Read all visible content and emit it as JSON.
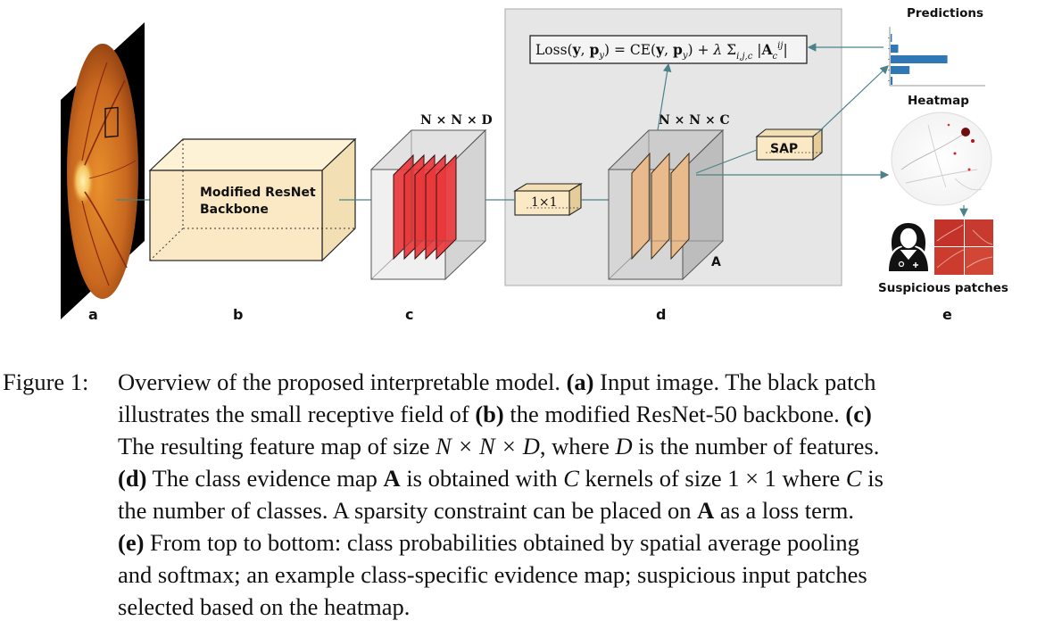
{
  "diagram": {
    "panel_labels": {
      "a": "a",
      "b": "b",
      "c": "c",
      "d": "d",
      "e": "e"
    },
    "backbone_label_line1": "Modified ResNet",
    "backbone_label_line2": "Backbone",
    "feature_map_dims": "N × N × D",
    "evidence_map_dims": "N × N × C",
    "conv_label": "1×1",
    "evidence_map_symbol": "A",
    "sap_label": "SAP",
    "loss_formula": "Loss(y, p_y) = CE(y, p_y) + λ Σ_{i,j,c} |A_c^{ij}|",
    "predictions_label": "Predictions",
    "heatmap_label": "Heatmap",
    "patches_label": "Suspicious patches",
    "colors": {
      "backbone_fill": "#fbe9c6",
      "feature_fill": "#e8383b",
      "evidence_fill": "#e9bb8c",
      "panel_gray": "#e6e6e6",
      "arrow": "#4a8288",
      "bar": "#2f78b5"
    }
  },
  "caption": {
    "figure_label": "Figure 1:",
    "line0": [
      "Overview of the proposed interpretable model. ",
      "(a)",
      " Input image. The black patch"
    ],
    "line1": [
      "illustrates the small receptive field of ",
      "(b)",
      " the modified ResNet-50 backbone. ",
      "(c)"
    ],
    "line2": [
      "The resulting feature map of size ",
      "N × N × D",
      ", where ",
      "D",
      " is the number of features."
    ],
    "line3": [
      "(d)",
      " The class evidence map ",
      "A",
      " is obtained with ",
      "C",
      " kernels of size 1 × 1 where ",
      "C",
      " is"
    ],
    "line4": [
      "the number of classes. A sparsity constraint can be placed on ",
      "A",
      " as a loss term."
    ],
    "line5": [
      "(e)",
      " From top to bottom: class probabilities obtained by spatial average pooling"
    ],
    "line6": "and softmax; an example class-specific evidence map; suspicious input patches",
    "line7": "selected based on the heatmap."
  },
  "chart_data": {
    "type": "bar",
    "orientation": "horizontal",
    "categories": [
      "0",
      "1",
      "2",
      "3",
      "4"
    ],
    "values": [
      0.02,
      0.12,
      0.9,
      0.3,
      0.03
    ],
    "xlim": [
      0,
      1.5
    ],
    "title": "Predictions"
  }
}
